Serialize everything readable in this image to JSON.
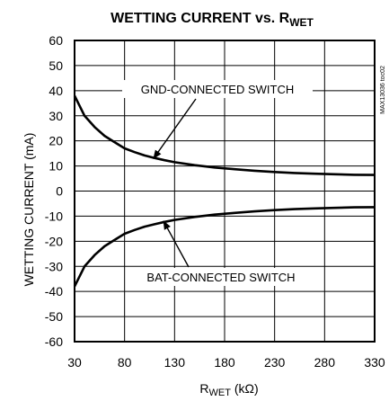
{
  "chart_data": {
    "type": "line",
    "title": {
      "main": "WETTING CURRENT vs. R",
      "sub": "WET"
    },
    "xlabel": {
      "main": "R",
      "sub": "WET",
      "unit": " (kΩ)"
    },
    "ylabel": "WETTING CURRENT (mA)",
    "xlim": [
      30,
      330
    ],
    "ylim": [
      -60,
      60
    ],
    "x_ticks": [
      30,
      80,
      130,
      180,
      230,
      280,
      330
    ],
    "y_ticks": [
      60,
      50,
      40,
      30,
      20,
      10,
      0,
      -10,
      -20,
      -30,
      -40,
      -50,
      -60
    ],
    "grid": true,
    "series": [
      {
        "name": "GND-CONNECTED SWITCH",
        "x": [
          30,
          40,
          50,
          60,
          70,
          80,
          90,
          100,
          110,
          120,
          130,
          150,
          170,
          190,
          210,
          230,
          250,
          270,
          290,
          310,
          330
        ],
        "y": [
          38,
          30,
          25.5,
          22,
          19.5,
          17,
          15.5,
          14.2,
          13.2,
          12.3,
          11.5,
          10.3,
          9.4,
          8.7,
          8.1,
          7.6,
          7.2,
          6.9,
          6.7,
          6.5,
          6.4
        ]
      },
      {
        "name": "BAT-CONNECTED SWITCH",
        "x": [
          30,
          40,
          50,
          60,
          70,
          80,
          90,
          100,
          110,
          120,
          130,
          150,
          170,
          190,
          210,
          230,
          250,
          270,
          290,
          310,
          330
        ],
        "y": [
          -38,
          -30,
          -25.5,
          -22,
          -19.5,
          -17,
          -15.5,
          -14.2,
          -13.2,
          -12.3,
          -11.5,
          -10.3,
          -9.4,
          -8.7,
          -8.1,
          -7.6,
          -7.2,
          -6.9,
          -6.7,
          -6.5,
          -6.4
        ]
      }
    ],
    "annotations": [
      {
        "text": "GND-CONNECTED SWITCH",
        "points_to": {
          "x": 109,
          "y": 13
        }
      },
      {
        "text": "BAT-CONNECTED SWITCH",
        "points_to": {
          "x": 119,
          "y": -12
        }
      }
    ],
    "side_code": "MAX13036 toc02"
  }
}
